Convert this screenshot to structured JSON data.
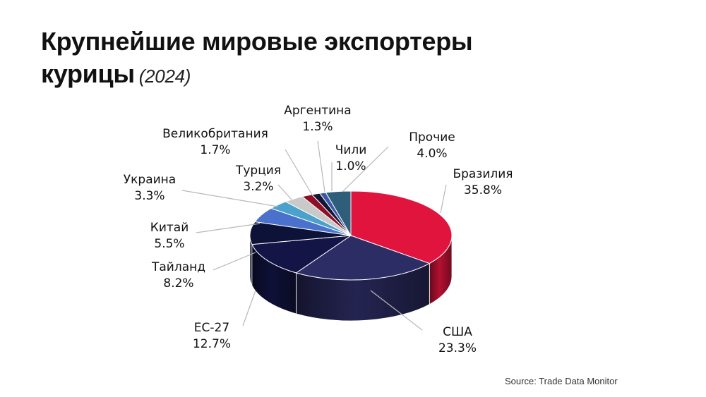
{
  "header": {
    "title": "Крупнейшие мировые экспортеры курицы",
    "year": "(2024)"
  },
  "source": "Source: Trade Data Monitor",
  "chart_data": {
    "type": "pie",
    "title": "Крупнейшие мировые экспортеры курицы",
    "subtitle": "(2024)",
    "unit": "%",
    "slices": [
      {
        "label": "Бразилия",
        "value": 35.8,
        "display": "35.8%",
        "color": "#e0143c"
      },
      {
        "label": "США",
        "value": 23.3,
        "display": "23.3%",
        "color": "#2d2d66"
      },
      {
        "label": "ЕС-27",
        "value": 12.7,
        "display": "12.7%",
        "color": "#121545"
      },
      {
        "label": "Тайланд",
        "value": 8.2,
        "display": "8.2%",
        "color": "#0d1238"
      },
      {
        "label": "Китай",
        "value": 5.5,
        "display": "5.5%",
        "color": "#4a72cc"
      },
      {
        "label": "Украина",
        "value": 3.3,
        "display": "3.3%",
        "color": "#4aa2cc"
      },
      {
        "label": "Турция",
        "value": 3.2,
        "display": "3.2%",
        "color": "#c9c9c9"
      },
      {
        "label": "Великобритания",
        "value": 1.7,
        "display": "1.7%",
        "color": "#8e1026"
      },
      {
        "label": "Аргентина",
        "value": 1.3,
        "display": "1.3%",
        "color": "#141433"
      },
      {
        "label": "Чили",
        "value": 1.0,
        "display": "1.0%",
        "color": "#3a5aa8"
      },
      {
        "label": "Прочие",
        "value": 4.0,
        "display": "4.0%",
        "color": "#2e5e7a"
      }
    ]
  }
}
